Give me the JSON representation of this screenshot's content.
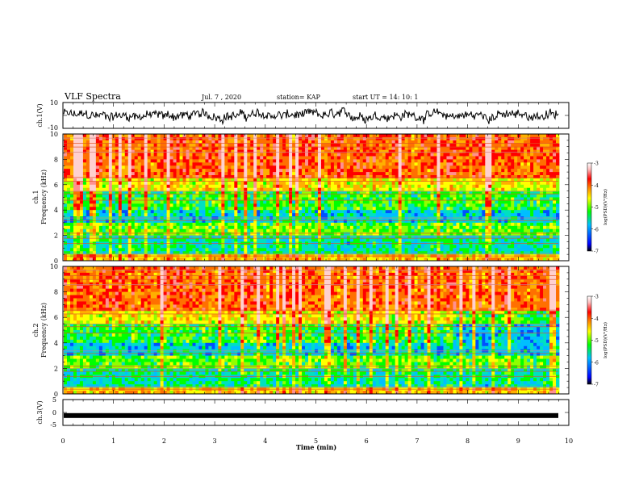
{
  "header": {
    "title": "VLF Spectra",
    "date": "Jul. 7 , 2020",
    "station": "station= KAP",
    "start": "start UT = 14: 10: 1"
  },
  "chart_data": [
    {
      "type": "line",
      "panel": "ch1-waveform",
      "ylabel": "ch.1(V)",
      "ylim": [
        -10,
        10
      ],
      "yticks": [
        "10",
        "-10"
      ],
      "xlim": [
        0,
        10
      ],
      "grid": false
    },
    {
      "type": "heatmap",
      "panel": "ch1-spectrogram",
      "ylabel": "ch.1\nFrequency (kHz)",
      "ylim": [
        0,
        10
      ],
      "yticks": [
        "0",
        "2",
        "4",
        "6",
        "8",
        "10"
      ],
      "xlim": [
        0,
        10
      ],
      "colorbar": {
        "min": -7,
        "max": -3,
        "ticks": [
          "-3",
          "-4",
          "-5",
          "-6",
          "-7"
        ],
        "label": "log(PSD)(V²/Hz)"
      }
    },
    {
      "type": "heatmap",
      "panel": "ch2-spectrogram",
      "ylabel": "ch.2\nFrequency (kHz)",
      "ylim": [
        0,
        10
      ],
      "yticks": [
        "0",
        "2",
        "4",
        "6",
        "8",
        "10"
      ],
      "xlim": [
        0,
        10
      ],
      "colorbar": {
        "min": -7,
        "max": -3,
        "ticks": [
          "-3",
          "-4",
          "-5",
          "-6",
          "-7"
        ],
        "label": "log(PSD)(V²/Hz)"
      }
    },
    {
      "type": "line",
      "panel": "ch3-waveform",
      "ylabel": "ch.3(V)",
      "ylim": [
        -5,
        5
      ],
      "yticks": [
        "5",
        "0",
        "-5"
      ],
      "xlim": [
        0,
        10
      ],
      "value": -1.2
    }
  ],
  "xaxis": {
    "label": "Time (min)",
    "ticks": [
      "0",
      "1",
      "2",
      "3",
      "4",
      "5",
      "6",
      "7",
      "8",
      "9",
      "10"
    ]
  },
  "colors": {
    "scale": [
      "#000000",
      "#0000ff",
      "#00bfff",
      "#00ff00",
      "#ffff00",
      "#ff8000",
      "#ff0000",
      "#ffc0c0",
      "#ffffff"
    ]
  }
}
